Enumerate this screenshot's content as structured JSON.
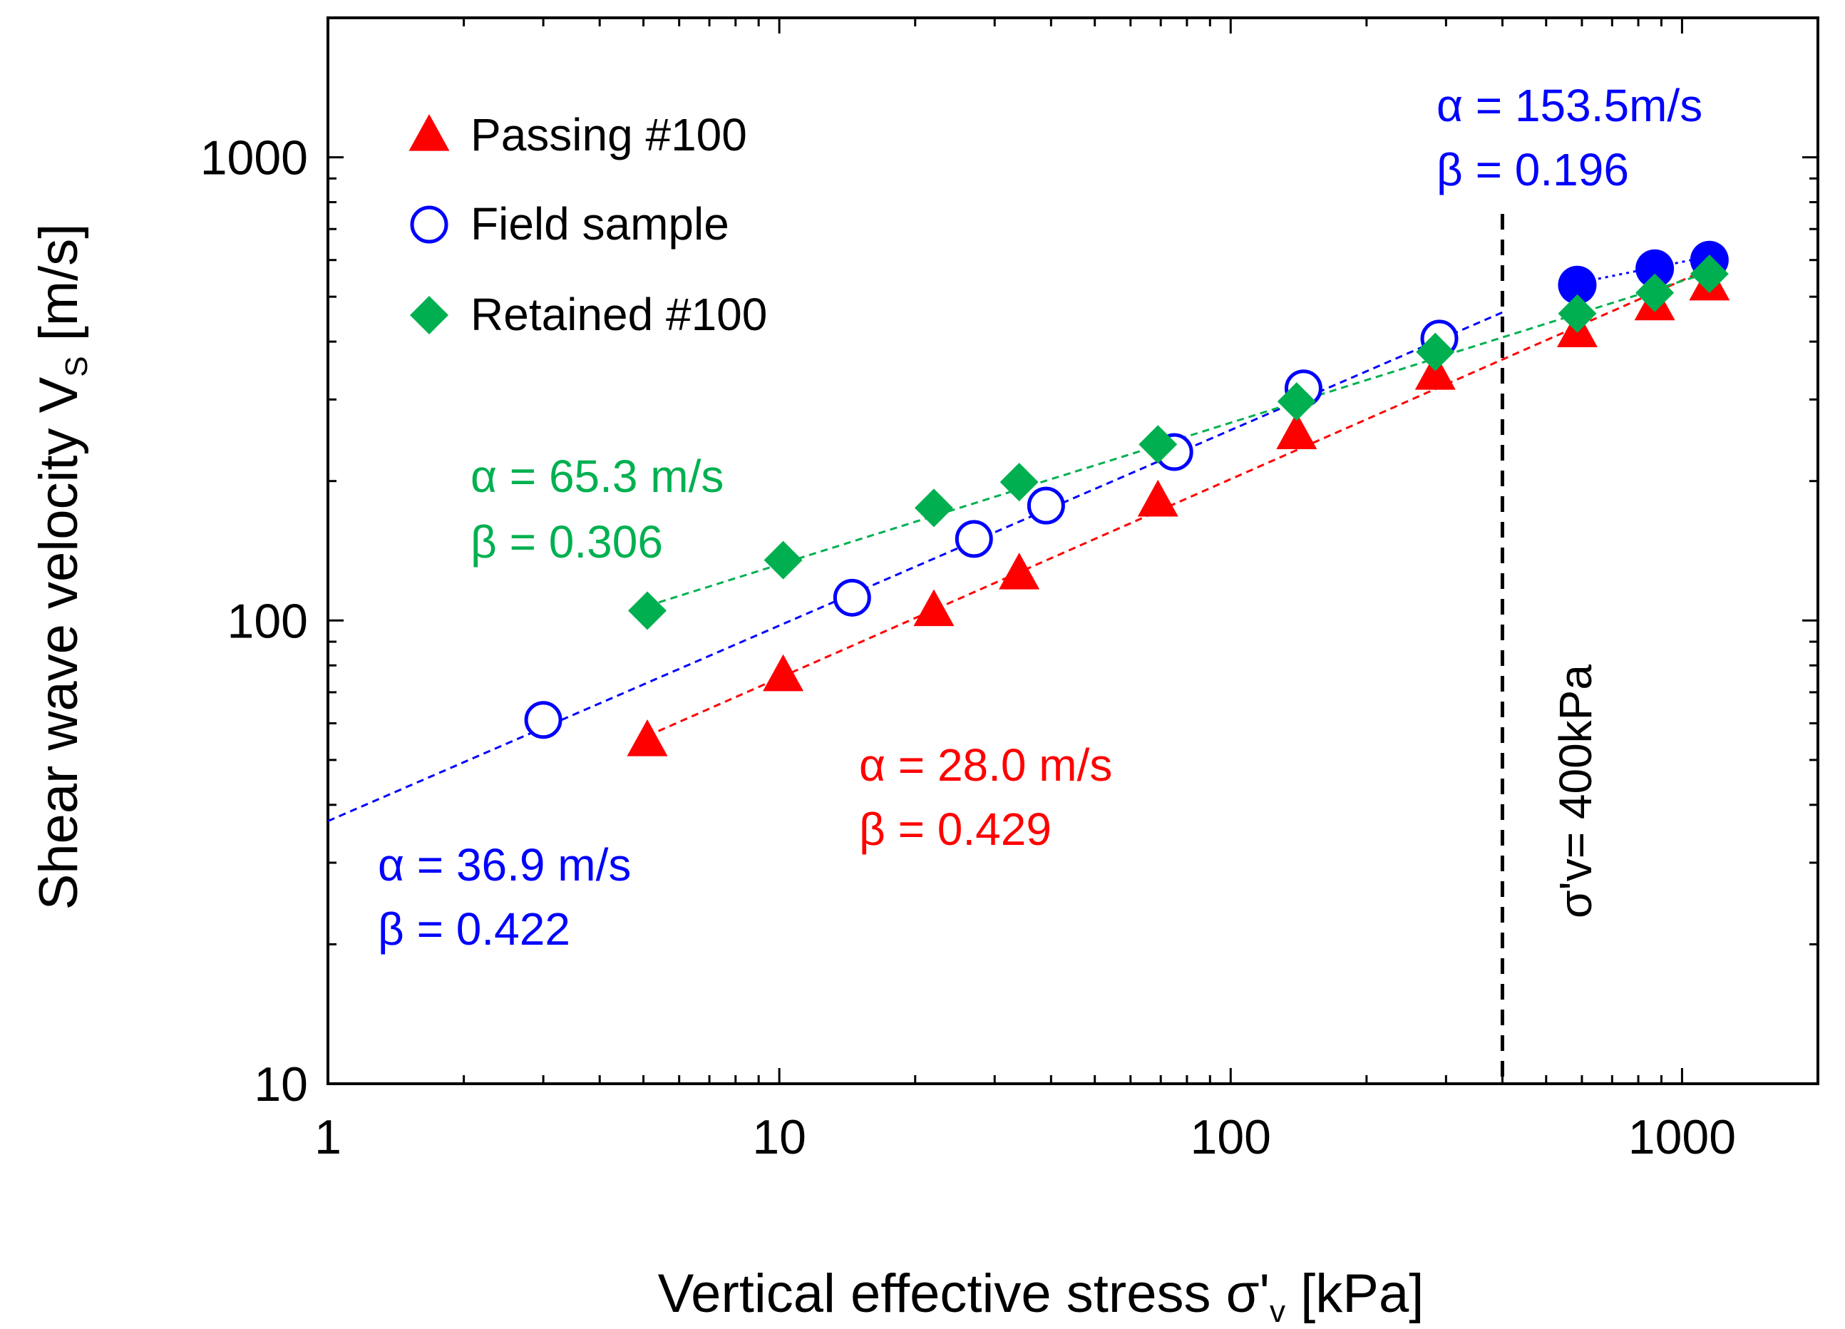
{
  "colors": {
    "passing": "#ff0000",
    "field": "#0000ff",
    "retained": "#00b050",
    "axis": "#000000"
  },
  "chart_data": {
    "type": "scatter",
    "xscale": "log",
    "yscale": "log",
    "xlim": [
      1,
      2000
    ],
    "ylim": [
      10,
      2000
    ],
    "xlabel": "Vertical effective stress σ'v [kPa]",
    "ylabel": "Shear wave velocity VS [m/s]",
    "xticks": [
      1,
      10,
      100,
      1000
    ],
    "yticks": [
      10,
      100,
      1000
    ],
    "xtick_labels": [
      "1",
      "10",
      "100",
      "1000"
    ],
    "ytick_labels": [
      "10",
      "100",
      "1000"
    ],
    "series": [
      {
        "name": "Passing #100",
        "color_key": "passing",
        "marker": "triangle",
        "x": [
          5.1,
          10.2,
          22.0,
          34.0,
          69.0,
          140.0,
          284.0,
          586.0,
          870.0,
          1150.0
        ],
        "y": [
          55,
          76,
          105,
          126,
          181,
          253,
          340,
          420,
          480,
          530
        ],
        "fit": {
          "alpha": 28.0,
          "beta": 0.429,
          "x_range": [
            5.1,
            1150
          ]
        }
      },
      {
        "name": "Field sample",
        "color_key": "field",
        "marker": "circle-open",
        "x": [
          3.0,
          14.5,
          27.0,
          39.0,
          75.0,
          145.0,
          290.0,
          586.0,
          870.0,
          1150.0
        ],
        "y": [
          61,
          112,
          150,
          177,
          231,
          317,
          406,
          530,
          575,
          600
        ],
        "filled_from_index": 7,
        "fit": {
          "alpha": 36.9,
          "beta": 0.422,
          "x_range": [
            1,
            400
          ]
        },
        "fit_high": {
          "alpha": 153.5,
          "beta": 0.196,
          "x_range": [
            586,
            1150
          ]
        }
      },
      {
        "name": "Retained #100",
        "color_key": "retained",
        "marker": "diamond",
        "x": [
          5.1,
          10.2,
          22.0,
          34.0,
          69.0,
          140.0,
          284.0,
          586.0,
          870.0,
          1150.0
        ],
        "y": [
          105,
          135,
          175,
          199,
          240,
          297,
          380,
          460,
          510,
          560
        ],
        "fit": {
          "alpha": 65.3,
          "beta": 0.306,
          "x_range": [
            5.1,
            1150
          ]
        }
      }
    ],
    "legend": [
      {
        "label": "Passing #100",
        "color_key": "passing",
        "marker": "triangle"
      },
      {
        "label": "Field sample",
        "color_key": "field",
        "marker": "circle-open"
      },
      {
        "label": "Retained #100",
        "color_key": "retained",
        "marker": "diamond"
      }
    ],
    "legend_position": "top-left",
    "vertical_line": {
      "x": 400,
      "label": "σ'v= 400kPa",
      "style": "dashed"
    },
    "annotations": [
      {
        "color_key": "retained",
        "line1": "α = 65.3 m/s",
        "line2": "β = 0.306"
      },
      {
        "color_key": "passing",
        "line1": "α = 28.0 m/s",
        "line2": "β = 0.429"
      },
      {
        "color_key": "field",
        "line1": "α = 36.9 m/s",
        "line2": "β = 0.422"
      },
      {
        "color_key": "field",
        "line1": "α = 153.5m/s",
        "line2": "β = 0.196"
      }
    ]
  }
}
